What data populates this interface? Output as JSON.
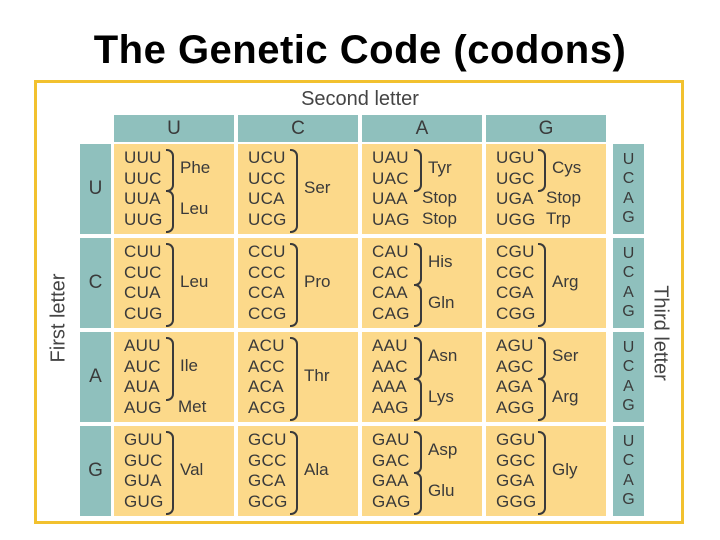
{
  "title": "The Genetic Code (codons)",
  "axis_labels": {
    "second": "Second letter",
    "first": "First letter",
    "third": "Third letter"
  },
  "second_letters": [
    "U",
    "C",
    "A",
    "G"
  ],
  "first_letters": [
    "U",
    "C",
    "A",
    "G"
  ],
  "third_letters": [
    "U",
    "C",
    "A",
    "G"
  ],
  "rows": [
    {
      "cells": [
        {
          "codons": [
            "UUU",
            "UUC",
            "UUA",
            "UUG"
          ],
          "groups": [
            {
              "name": "Phe",
              "span": [
                0,
                1
              ],
              "brace": true
            },
            {
              "name": "Leu",
              "span": [
                2,
                3
              ],
              "brace": true
            }
          ]
        },
        {
          "codons": [
            "UCU",
            "UCC",
            "UCA",
            "UCG"
          ],
          "groups": [
            {
              "name": "Ser",
              "span": [
                0,
                3
              ],
              "brace": true
            }
          ]
        },
        {
          "codons": [
            "UAU",
            "UAC",
            "UAA",
            "UAG"
          ],
          "groups": [
            {
              "name": "Tyr",
              "span": [
                0,
                1
              ],
              "brace": true
            },
            {
              "name": "Stop",
              "span": [
                2,
                2
              ],
              "brace": false
            },
            {
              "name": "Stop",
              "span": [
                3,
                3
              ],
              "brace": false
            }
          ]
        },
        {
          "codons": [
            "UGU",
            "UGC",
            "UGA",
            "UGG"
          ],
          "groups": [
            {
              "name": "Cys",
              "span": [
                0,
                1
              ],
              "brace": true
            },
            {
              "name": "Stop",
              "span": [
                2,
                2
              ],
              "brace": false
            },
            {
              "name": "Trp",
              "span": [
                3,
                3
              ],
              "brace": false
            }
          ]
        }
      ]
    },
    {
      "cells": [
        {
          "codons": [
            "CUU",
            "CUC",
            "CUA",
            "CUG"
          ],
          "groups": [
            {
              "name": "Leu",
              "span": [
                0,
                3
              ],
              "brace": true
            }
          ]
        },
        {
          "codons": [
            "CCU",
            "CCC",
            "CCA",
            "CCG"
          ],
          "groups": [
            {
              "name": "Pro",
              "span": [
                0,
                3
              ],
              "brace": true
            }
          ]
        },
        {
          "codons": [
            "CAU",
            "CAC",
            "CAA",
            "CAG"
          ],
          "groups": [
            {
              "name": "His",
              "span": [
                0,
                1
              ],
              "brace": true
            },
            {
              "name": "Gln",
              "span": [
                2,
                3
              ],
              "brace": true
            }
          ]
        },
        {
          "codons": [
            "CGU",
            "CGC",
            "CGA",
            "CGG"
          ],
          "groups": [
            {
              "name": "Arg",
              "span": [
                0,
                3
              ],
              "brace": true
            }
          ]
        }
      ]
    },
    {
      "cells": [
        {
          "codons": [
            "AUU",
            "AUC",
            "AUA",
            "AUG"
          ],
          "groups": [
            {
              "name": "Ile",
              "span": [
                0,
                2
              ],
              "brace": true
            },
            {
              "name": "Met",
              "span": [
                3,
                3
              ],
              "brace": false
            }
          ]
        },
        {
          "codons": [
            "ACU",
            "ACC",
            "ACA",
            "ACG"
          ],
          "groups": [
            {
              "name": "Thr",
              "span": [
                0,
                3
              ],
              "brace": true
            }
          ]
        },
        {
          "codons": [
            "AAU",
            "AAC",
            "AAA",
            "AAG"
          ],
          "groups": [
            {
              "name": "Asn",
              "span": [
                0,
                1
              ],
              "brace": true
            },
            {
              "name": "Lys",
              "span": [
                2,
                3
              ],
              "brace": true
            }
          ]
        },
        {
          "codons": [
            "AGU",
            "AGC",
            "AGA",
            "AGG"
          ],
          "groups": [
            {
              "name": "Ser",
              "span": [
                0,
                1
              ],
              "brace": true
            },
            {
              "name": "Arg",
              "span": [
                2,
                3
              ],
              "brace": true
            }
          ]
        }
      ]
    },
    {
      "cells": [
        {
          "codons": [
            "GUU",
            "GUC",
            "GUA",
            "GUG"
          ],
          "groups": [
            {
              "name": "Val",
              "span": [
                0,
                3
              ],
              "brace": true
            }
          ]
        },
        {
          "codons": [
            "GCU",
            "GCC",
            "GCA",
            "GCG"
          ],
          "groups": [
            {
              "name": "Ala",
              "span": [
                0,
                3
              ],
              "brace": true
            }
          ]
        },
        {
          "codons": [
            "GAU",
            "GAC",
            "GAA",
            "GAG"
          ],
          "groups": [
            {
              "name": "Asp",
              "span": [
                0,
                1
              ],
              "brace": true
            },
            {
              "name": "Glu",
              "span": [
                2,
                3
              ],
              "brace": true
            }
          ]
        },
        {
          "codons": [
            "GGU",
            "GGC",
            "GGA",
            "GGG"
          ],
          "groups": [
            {
              "name": "Gly",
              "span": [
                0,
                3
              ],
              "brace": true
            }
          ]
        }
      ]
    }
  ],
  "colors": {
    "frame": "#f2c12e",
    "header": "#8fc0bd",
    "cell": "#fcd98a"
  }
}
